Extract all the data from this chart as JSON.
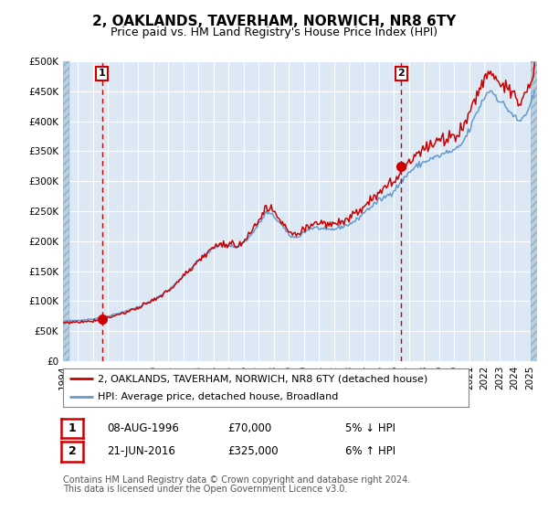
{
  "title": "2, OAKLANDS, TAVERHAM, NORWICH, NR8 6TY",
  "subtitle": "Price paid vs. HM Land Registry's House Price Index (HPI)",
  "legend_line1": "2, OAKLANDS, TAVERHAM, NORWICH, NR8 6TY (detached house)",
  "legend_line2": "HPI: Average price, detached house, Broadland",
  "annotation1_label": "1",
  "annotation1_date": "08-AUG-1996",
  "annotation1_price": "£70,000",
  "annotation1_hpi": "5% ↓ HPI",
  "annotation2_label": "2",
  "annotation2_date": "21-JUN-2016",
  "annotation2_price": "£325,000",
  "annotation2_hpi": "6% ↑ HPI",
  "footnote1": "Contains HM Land Registry data © Crown copyright and database right 2024.",
  "footnote2": "This data is licensed under the Open Government Licence v3.0.",
  "transaction1_year": 1996.6,
  "transaction1_value": 70000,
  "transaction2_year": 2016.47,
  "transaction2_value": 325000,
  "xmin": 1994.0,
  "xmax": 2025.5,
  "ymin": 0,
  "ymax": 500000,
  "yticks": [
    0,
    50000,
    100000,
    150000,
    200000,
    250000,
    300000,
    350000,
    400000,
    450000,
    500000
  ],
  "background_color": "#dce9f5",
  "hatch_color": "#b8cfe0",
  "grid_color": "#ffffff",
  "red_line_color": "#cc0000",
  "blue_line_color": "#6699cc",
  "marker_color": "#cc0000",
  "dashed_line_color": "#cc0000",
  "annotation_box_color": "#cc0000",
  "title_fontsize": 11,
  "subtitle_fontsize": 9,
  "tick_fontsize": 7.5,
  "legend_fontsize": 8,
  "footnote_fontsize": 7
}
